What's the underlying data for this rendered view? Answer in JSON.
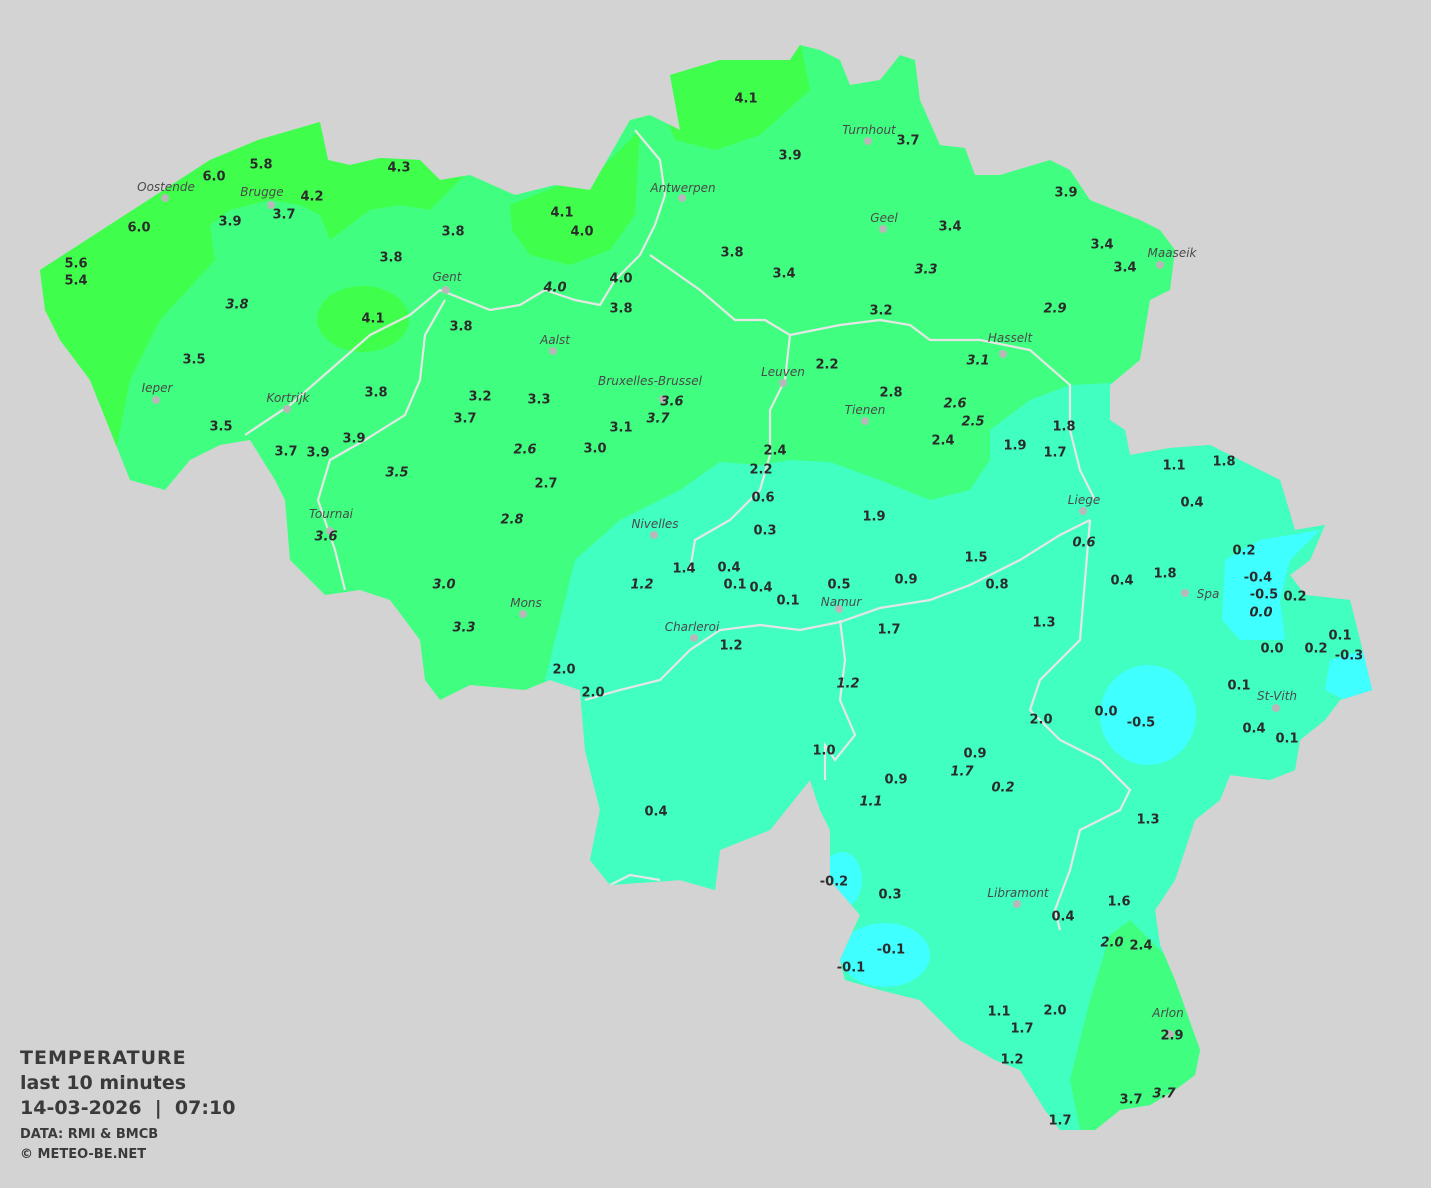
{
  "legend": {
    "title": "TEMPERATURE",
    "subtitle": "last 10 minutes",
    "datetime": "14-03-2026  |  07:10",
    "source": "DATA: RMI & BMCB",
    "copyright": "© METEO-BE.NET"
  },
  "colors": {
    "background": "#d3d3d3",
    "band_4_to_6": "#40ff4c",
    "band_2_to_4": "#40ff80",
    "band_0_to_2": "#40ffc0",
    "band_below_0": "#40ffff",
    "rivers": "#e6e6e6",
    "text": "#2b2b2b"
  },
  "cities": [
    "Oostende",
    "Brugge",
    "Antwerpen",
    "Turnhout",
    "Geel",
    "Maaseik",
    "Gent",
    "Aalst",
    "Leuven",
    "Hasselt",
    "Ieper",
    "Kortrijk",
    "Bruxelles-Brussel",
    "Tienen",
    "Liege",
    "Tournai",
    "Nivelles",
    "Spa",
    "Mons",
    "Namur",
    "Charleroi",
    "St-Vith",
    "Libramont",
    "Arlon"
  ],
  "stations": [
    {
      "v": "4.1"
    },
    {
      "v": "3.9"
    },
    {
      "v": "3.7"
    },
    {
      "v": "4.3"
    },
    {
      "v": "5.8"
    },
    {
      "v": "6.0"
    },
    {
      "v": "4.2"
    },
    {
      "v": "3.7"
    },
    {
      "v": "3.9"
    },
    {
      "v": "6.0"
    },
    {
      "v": "4.1"
    },
    {
      "v": "4.0"
    },
    {
      "v": "3.8"
    },
    {
      "v": "3.9"
    },
    {
      "v": "3.4"
    },
    {
      "v": "3.4"
    },
    {
      "v": "3.4"
    },
    {
      "v": "5.6"
    },
    {
      "v": "5.4"
    },
    {
      "v": "3.8"
    },
    {
      "v": "3.8"
    },
    {
      "v": "3.4"
    },
    {
      "v": "3.3",
      "italic": true
    },
    {
      "v": "4.0"
    },
    {
      "v": "4.0",
      "italic": true
    },
    {
      "v": "3.8"
    },
    {
      "v": "3.8",
      "italic": true
    },
    {
      "v": "4.1"
    },
    {
      "v": "3.8"
    },
    {
      "v": "3.2"
    },
    {
      "v": "2.9",
      "italic": true
    },
    {
      "v": "3.1",
      "italic": true
    },
    {
      "v": "2.2"
    },
    {
      "v": "3.5"
    },
    {
      "v": "3.8"
    },
    {
      "v": "3.2"
    },
    {
      "v": "3.3"
    },
    {
      "v": "3.6",
      "italic": true
    },
    {
      "v": "3.7",
      "italic": true
    },
    {
      "v": "2.8"
    },
    {
      "v": "2.6",
      "italic": true
    },
    {
      "v": "2.5",
      "italic": true
    },
    {
      "v": "3.7"
    },
    {
      "v": "3.1"
    },
    {
      "v": "3.5"
    },
    {
      "v": "3.9"
    },
    {
      "v": "3.7"
    },
    {
      "v": "3.9"
    },
    {
      "v": "2.6",
      "italic": true
    },
    {
      "v": "3.0"
    },
    {
      "v": "2.4"
    },
    {
      "v": "2.2"
    },
    {
      "v": "2.4"
    },
    {
      "v": "1.9"
    },
    {
      "v": "1.8"
    },
    {
      "v": "1.7"
    },
    {
      "v": "3.5",
      "italic": true
    },
    {
      "v": "2.7"
    },
    {
      "v": "0.6"
    },
    {
      "v": "1.9"
    },
    {
      "v": "0.3"
    },
    {
      "v": "2.8",
      "italic": true
    },
    {
      "v": "3.6",
      "italic": true
    },
    {
      "v": "1.1"
    },
    {
      "v": "1.8"
    },
    {
      "v": "0.4"
    },
    {
      "v": "0.6",
      "italic": true
    },
    {
      "v": "0.2"
    },
    {
      "v": "1.4"
    },
    {
      "v": "0.4"
    },
    {
      "v": "0.1"
    },
    {
      "v": "0.4"
    },
    {
      "v": "0.1"
    },
    {
      "v": "0.5"
    },
    {
      "v": "0.9"
    },
    {
      "v": "1.5"
    },
    {
      "v": "0.8"
    },
    {
      "v": "0.4"
    },
    {
      "v": "1.8"
    },
    {
      "v": "-0.4"
    },
    {
      "v": "-0.5"
    },
    {
      "v": "0.2"
    },
    {
      "v": "0.0",
      "italic": true
    },
    {
      "v": "1.2",
      "italic": true
    },
    {
      "v": "3.0",
      "italic": true
    },
    {
      "v": "3.3",
      "italic": true
    },
    {
      "v": "1.3"
    },
    {
      "v": "1.7"
    },
    {
      "v": "1.2"
    },
    {
      "v": "0.1"
    },
    {
      "v": "0.0"
    },
    {
      "v": "0.2"
    },
    {
      "v": "-0.3"
    },
    {
      "v": "2.0"
    },
    {
      "v": "2.0"
    },
    {
      "v": "1.2",
      "italic": true
    },
    {
      "v": "0.1"
    },
    {
      "v": "0.0"
    },
    {
      "v": "-0.5"
    },
    {
      "v": "2.0"
    },
    {
      "v": "0.4"
    },
    {
      "v": "0.1"
    },
    {
      "v": "1.0"
    },
    {
      "v": "0.9"
    },
    {
      "v": "1.7",
      "italic": true
    },
    {
      "v": "0.9"
    },
    {
      "v": "0.2",
      "italic": true
    },
    {
      "v": "1.1",
      "italic": true
    },
    {
      "v": "0.4"
    },
    {
      "v": "1.3"
    },
    {
      "v": "-0.2"
    },
    {
      "v": "0.3"
    },
    {
      "v": "1.6"
    },
    {
      "v": "0.4"
    },
    {
      "v": "2.0",
      "italic": true
    },
    {
      "v": "2.4"
    },
    {
      "v": "-0.1"
    },
    {
      "v": "-0.1"
    },
    {
      "v": "1.1"
    },
    {
      "v": "2.0"
    },
    {
      "v": "1.7"
    },
    {
      "v": "2.9"
    },
    {
      "v": "1.2"
    },
    {
      "v": "3.7"
    },
    {
      "v": "3.7",
      "italic": true
    },
    {
      "v": "1.7"
    }
  ]
}
